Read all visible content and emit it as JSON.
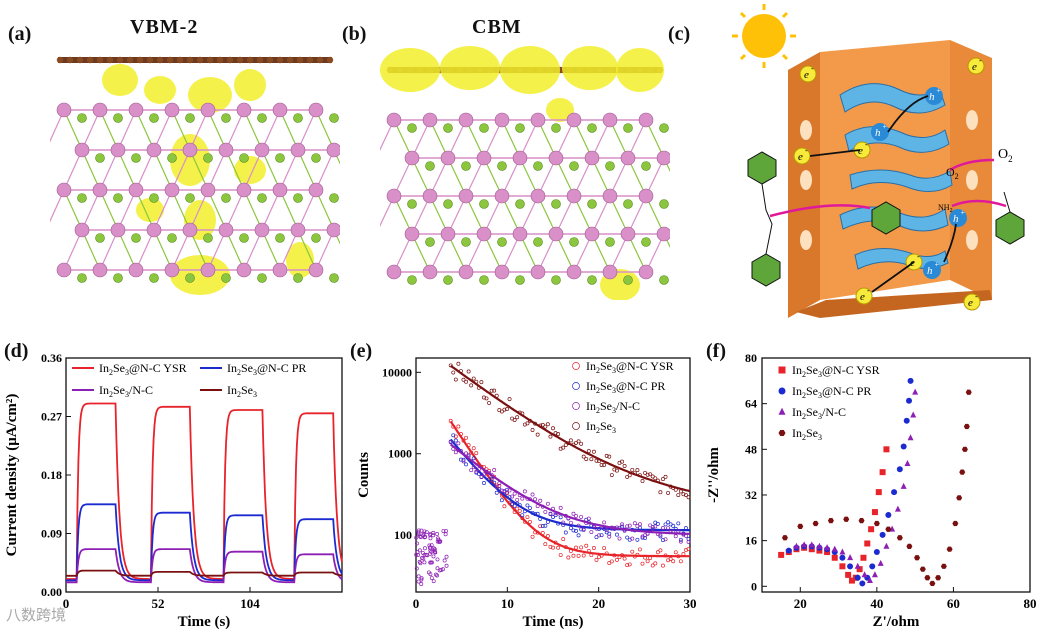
{
  "panels": {
    "a": {
      "label": "(a)",
      "title": "VBM-2"
    },
    "b": {
      "label": "(b)",
      "title": "CBM"
    },
    "c": {
      "label": "(c)",
      "annotations": {
        "electron": "e",
        "hole": "h",
        "sup_minus": "-",
        "sup_plus": "+",
        "o2": "O",
        "o2_sub": "2",
        "superoxide": "O",
        "superoxide_sub": "2",
        "nh2": "NH",
        "nh2_sub": "2"
      }
    },
    "d": {
      "label": "(d)"
    },
    "e": {
      "label": "(e)"
    },
    "f": {
      "label": "(f)"
    }
  },
  "colors": {
    "red": "#e8242a",
    "blue": "#1c2bd0",
    "purple": "#8d1fb4",
    "darkred": "#7a1010",
    "green": "#8cc63f",
    "pink": "#d98fc8",
    "yellow": "#f2ef2a",
    "orange": "#f29a4a",
    "cyan": "#5fb4e6"
  },
  "watermark": "八数跨境",
  "chart_data": [
    {
      "id": "d",
      "type": "line",
      "xlabel": "Time (s)",
      "ylabel": "Current density (μA/cm²)",
      "xlim": [
        0,
        156
      ],
      "ylim": [
        0,
        0.36
      ],
      "xticks": [
        0,
        52,
        104
      ],
      "xtick_labels": [
        "0",
        "52",
        "104"
      ],
      "yticks": [
        0.0,
        0.09,
        0.18,
        0.27,
        0.36
      ],
      "ytick_labels": [
        "0.00",
        "0.09",
        "0.18",
        "0.27",
        "0.36"
      ],
      "light_on": [
        [
          6,
          28
        ],
        [
          48,
          70
        ],
        [
          89,
          111
        ],
        [
          129,
          151
        ]
      ],
      "series": [
        {
          "name": "In2Se3@N-C YSR",
          "color": "#e8242a",
          "on_values": [
            0.29,
            0.285,
            0.28,
            0.275
          ],
          "base": 0.02
        },
        {
          "name": "In2Se3@N-C PR",
          "color": "#1c2bd0",
          "on_values": [
            0.135,
            0.122,
            0.118,
            0.112
          ],
          "base": 0.018
        },
        {
          "name": "In2Se3/N-C",
          "color": "#8d1fb4",
          "on_values": [
            0.066,
            0.066,
            0.062,
            0.058
          ],
          "base": 0.015
        },
        {
          "name": "In2Se3",
          "color": "#7a1010",
          "on_values": [
            0.033,
            0.031,
            0.03,
            0.03
          ],
          "base": 0.025
        }
      ],
      "legend": [
        {
          "name": "In",
          "sub1": "2",
          "mid": "Se",
          "sub2": "3",
          "rest": "@N-C YSR",
          "color": "#e8242a"
        },
        {
          "name": "In",
          "sub1": "2",
          "mid": "Se",
          "sub2": "3",
          "rest": "@N-C PR",
          "color": "#1c2bd0"
        },
        {
          "name": "In",
          "sub1": "2",
          "mid": "Se",
          "sub2": "3",
          "rest": "/N-C",
          "color": "#8d1fb4"
        },
        {
          "name": "In",
          "sub1": "2",
          "mid": "Se",
          "sub2": "3",
          "rest": "",
          "color": "#7a1010"
        }
      ]
    },
    {
      "id": "e",
      "type": "scatter",
      "xlabel": "Time (ns)",
      "ylabel": "Counts",
      "xlim": [
        0,
        30
      ],
      "ylim_log": [
        20,
        15000
      ],
      "xticks": [
        0,
        10,
        20,
        30
      ],
      "xtick_labels": [
        "0",
        "10",
        "20",
        "30"
      ],
      "yticks": [
        100,
        1000,
        10000
      ],
      "ytick_labels": [
        "100",
        "1000",
        "10000"
      ],
      "series": [
        {
          "name": "In2Se3@N-C YSR",
          "color": "#e8242a",
          "peak": 2500,
          "tail": 55,
          "tau": 2.5
        },
        {
          "name": "In2Se3@N-C PR",
          "color": "#1c2bd0",
          "peak": 1500,
          "tail": 115,
          "tau": 3.0
        },
        {
          "name": "In2Se3/N-C",
          "color": "#8d1fb4",
          "peak": 1300,
          "tail": 100,
          "tau": 4.5
        },
        {
          "name": "In2Se3",
          "color": "#7a1010",
          "peak": 11000,
          "tail": 200,
          "tau": 10.0
        }
      ],
      "legend": [
        {
          "name": "In",
          "sub1": "2",
          "mid": "Se",
          "sub2": "3",
          "rest": "@N-C YSR"
        },
        {
          "name": "In",
          "sub1": "2",
          "mid": "Se",
          "sub2": "3",
          "rest": "@N-C PR"
        },
        {
          "name": "In",
          "sub1": "2",
          "mid": "Se",
          "sub2": "3",
          "rest": "/N-C"
        },
        {
          "name": "In",
          "sub1": "2",
          "mid": "Se",
          "sub2": "3",
          "rest": ""
        }
      ]
    },
    {
      "id": "f",
      "type": "scatter",
      "xlabel": "Z'/ohm",
      "ylabel": "-Z''/ohm",
      "xlim": [
        10,
        80
      ],
      "ylim": [
        -2,
        80
      ],
      "xticks": [
        20,
        40,
        60,
        80
      ],
      "xtick_labels": [
        "20",
        "40",
        "60",
        "80"
      ],
      "yticks": [
        0,
        16,
        32,
        48,
        64,
        80
      ],
      "ytick_labels": [
        "0",
        "16",
        "32",
        "48",
        "64",
        "80"
      ],
      "series": [
        {
          "name": "In2Se3@N-C YSR",
          "color": "#e8242a",
          "marker": "square",
          "points": [
            [
              15,
              11
            ],
            [
              17,
              12
            ],
            [
              19,
              13
            ],
            [
              21,
              13.5
            ],
            [
              23,
              13
            ],
            [
              25,
              12.5
            ],
            [
              27,
              12
            ],
            [
              29,
              10
            ],
            [
              31,
              7
            ],
            [
              32.5,
              4
            ],
            [
              33.5,
              2
            ],
            [
              34.5,
              3
            ],
            [
              35.5,
              6
            ],
            [
              36.5,
              10
            ],
            [
              37.5,
              15
            ],
            [
              38.5,
              20
            ],
            [
              39.5,
              26
            ],
            [
              40.5,
              33
            ],
            [
              41.5,
              40
            ],
            [
              42.5,
              48
            ]
          ]
        },
        {
          "name": "In2Se3@N-C PR",
          "color": "#1c2bd0",
          "marker": "circle",
          "points": [
            [
              17,
              12.5
            ],
            [
              19,
              13.5
            ],
            [
              21,
              14
            ],
            [
              23,
              14
            ],
            [
              25,
              13.5
            ],
            [
              27,
              13
            ],
            [
              29,
              12
            ],
            [
              31,
              10
            ],
            [
              33,
              7
            ],
            [
              35,
              3
            ],
            [
              36.2,
              1
            ],
            [
              37.5,
              3
            ],
            [
              38.8,
              7
            ],
            [
              40,
              12
            ],
            [
              41.5,
              18
            ],
            [
              43,
              25
            ],
            [
              44.5,
              33
            ],
            [
              46,
              41
            ],
            [
              47,
              49
            ],
            [
              47.8,
              58
            ],
            [
              48.4,
              65
            ],
            [
              48.8,
              72
            ]
          ]
        },
        {
          "name": "In2Se3/N-C",
          "color": "#8d1fb4",
          "marker": "triangle",
          "points": [
            [
              19,
              14
            ],
            [
              21,
              14.5
            ],
            [
              23,
              14.5
            ],
            [
              25,
              14
            ],
            [
              27,
              13.5
            ],
            [
              29,
              13
            ],
            [
              31,
              12
            ],
            [
              33,
              10
            ],
            [
              35,
              7
            ],
            [
              36.8,
              4
            ],
            [
              38.2,
              2
            ],
            [
              39.5,
              4
            ],
            [
              41,
              8
            ],
            [
              42.5,
              14
            ],
            [
              44,
              20
            ],
            [
              45.5,
              27
            ],
            [
              47,
              35
            ],
            [
              48,
              43
            ],
            [
              48.8,
              52
            ],
            [
              49.5,
              60
            ],
            [
              50,
              68
            ]
          ]
        },
        {
          "name": "In2Se3",
          "color": "#7a1010",
          "marker": "hexagon",
          "points": [
            [
              16,
              17
            ],
            [
              20,
              21
            ],
            [
              24,
              22
            ],
            [
              28,
              23
            ],
            [
              32,
              23.5
            ],
            [
              36,
              23
            ],
            [
              40,
              22
            ],
            [
              43,
              20
            ],
            [
              46,
              17
            ],
            [
              48.5,
              14
            ],
            [
              50.5,
              10
            ],
            [
              52,
              6
            ],
            [
              53.2,
              3
            ],
            [
              54.5,
              1
            ],
            [
              56,
              3
            ],
            [
              57.5,
              7
            ],
            [
              59,
              13
            ],
            [
              60.5,
              22
            ],
            [
              61.5,
              31
            ],
            [
              62.3,
              40
            ],
            [
              63,
              48
            ],
            [
              63.5,
              56
            ],
            [
              64,
              68
            ]
          ]
        }
      ],
      "legend": [
        {
          "name": "In",
          "sub1": "2",
          "mid": "Se",
          "sub2": "3",
          "rest": "@N-C YSR"
        },
        {
          "name": "In",
          "sub1": "2",
          "mid": "Se",
          "sub2": "3",
          "rest": "@N-C PR"
        },
        {
          "name": "In",
          "sub1": "2",
          "mid": "Se",
          "sub2": "3",
          "rest": "/N-C"
        },
        {
          "name": "In",
          "sub1": "2",
          "mid": "Se",
          "sub2": "3",
          "rest": ""
        }
      ]
    }
  ]
}
